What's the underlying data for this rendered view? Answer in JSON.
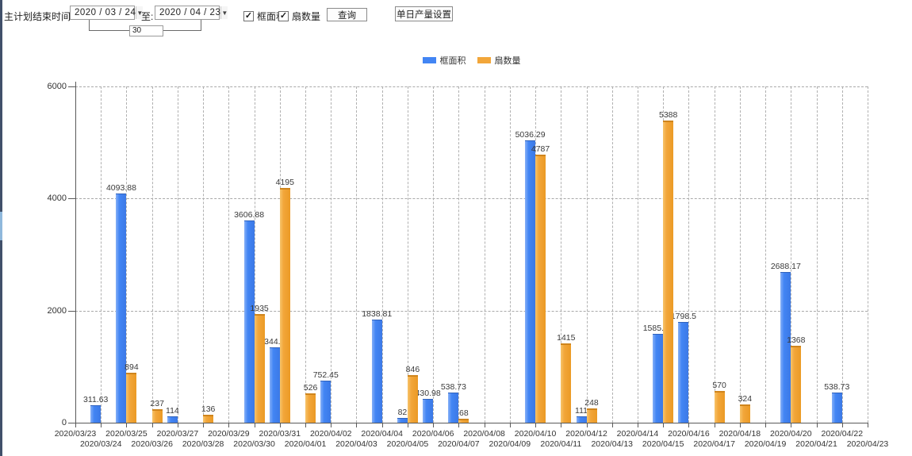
{
  "toolbar": {
    "main_label": "主计划结束时间:",
    "date_from": "2020 / 03 / 24",
    "to_label": "至:",
    "date_to": "2020 / 04 / 23",
    "span_days": "30",
    "checkbox_frame": {
      "label": "框面积",
      "checked": true
    },
    "checkbox_fan": {
      "label": "扇数量",
      "checked": true
    },
    "query_button": "查询",
    "daily_output_button": "单日产量设置"
  },
  "icons": {
    "checkmark": "✓",
    "dropdown_arrow": "▼"
  },
  "legend": {
    "items": [
      {
        "label": "框面积",
        "color": "#4285f4"
      },
      {
        "label": "扇数量",
        "color": "#f2a63a"
      }
    ]
  },
  "chart_data": {
    "type": "bar",
    "title": "",
    "xlabel": "",
    "ylabel": "",
    "ylim": [
      0,
      6000
    ],
    "yticks": [
      0,
      2000,
      4000,
      6000
    ],
    "grid": "dashed",
    "legend_position": "top-center",
    "categories": [
      "2020/03/23",
      "2020/03/24",
      "2020/03/25",
      "2020/03/26",
      "2020/03/27",
      "2020/03/28",
      "2020/03/29",
      "2020/03/30",
      "2020/03/31",
      "2020/04/01",
      "2020/04/02",
      "2020/04/03",
      "2020/04/04",
      "2020/04/05",
      "2020/04/06",
      "2020/04/07",
      "2020/04/08",
      "2020/04/09",
      "2020/04/10",
      "2020/04/11",
      "2020/04/12",
      "2020/04/13",
      "2020/04/14",
      "2020/04/15",
      "2020/04/16",
      "2020/04/17",
      "2020/04/18",
      "2020/04/19",
      "2020/04/20",
      "2020/04/21",
      "2020/04/22",
      "2020/04/23"
    ],
    "series": [
      {
        "name": "框面积",
        "color": "#4285f4",
        "values": [
          null,
          311.63,
          4093.88,
          null,
          114,
          null,
          null,
          3606.88,
          1344.95,
          null,
          752.45,
          null,
          1838.81,
          82,
          430.98,
          538.73,
          null,
          null,
          5036.29,
          null,
          111,
          null,
          null,
          1585.96,
          1798.5,
          null,
          null,
          null,
          2688.17,
          null,
          538.73,
          null
        ]
      },
      {
        "name": "扇数量",
        "color": "#f2a63a",
        "values": [
          null,
          null,
          894,
          237,
          null,
          136,
          null,
          1935,
          4195,
          526,
          null,
          null,
          null,
          846,
          null,
          68,
          null,
          null,
          4787,
          1415,
          248,
          null,
          null,
          5388,
          null,
          570,
          324,
          null,
          1368,
          null,
          null,
          null
        ]
      }
    ]
  }
}
